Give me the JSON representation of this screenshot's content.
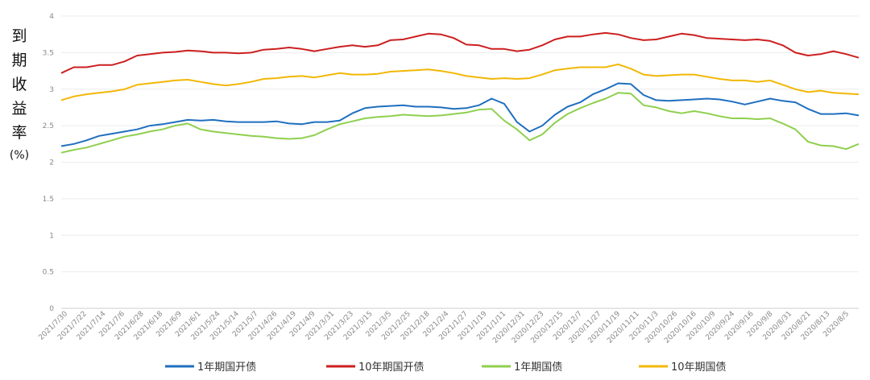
{
  "chart_data": {
    "type": "line",
    "ylabel_chars": [
      "到",
      "期",
      "收",
      "益",
      "率"
    ],
    "ylabel_unit": "(%)",
    "ylim": [
      0,
      4
    ],
    "yticks": [
      "0",
      "0.5",
      "1",
      "1.5",
      "2",
      "2.5",
      "3",
      "3.5",
      "4"
    ],
    "grid": true,
    "legend_position": "bottom",
    "x_order": "newest-to-oldest (left to right)",
    "xticks": [
      "2021/7/30",
      "2021/7/22",
      "2021/7/14",
      "2021/7/6",
      "2021/6/28",
      "2021/6/18",
      "2021/6/9",
      "2021/6/1",
      "2021/5/24",
      "2021/5/14",
      "2021/5/7",
      "2021/4/26",
      "2021/4/19",
      "2021/4/9",
      "2021/3/31",
      "2021/3/23",
      "2021/3/15",
      "2021/3/5",
      "2021/2/25",
      "2021/2/18",
      "2021/2/4",
      "2021/1/27",
      "2021/1/19",
      "2021/1/11",
      "2020/12/31",
      "2020/12/23",
      "2020/12/15",
      "2020/12/7",
      "2020/11/27",
      "2020/11/19",
      "2020/11/11",
      "2020/11/3",
      "2020/10/26",
      "2020/10/16",
      "2020/10/9",
      "2020/9/24",
      "2020/9/16",
      "2020/9/8",
      "2020/8/31",
      "2020/8/21",
      "2020/8/13",
      "2020/8/5"
    ],
    "series": [
      {
        "name": "1年期国开债",
        "color": "#1f6fbf",
        "values": [
          2.22,
          2.25,
          2.3,
          2.36,
          2.39,
          2.42,
          2.45,
          2.5,
          2.52,
          2.55,
          2.58,
          2.57,
          2.58,
          2.56,
          2.55,
          2.55,
          2.55,
          2.56,
          2.53,
          2.52,
          2.55,
          2.55,
          2.57,
          2.67,
          2.74,
          2.76,
          2.77,
          2.78,
          2.76,
          2.76,
          2.75,
          2.73,
          2.74,
          2.78,
          2.87,
          2.8,
          2.55,
          2.42,
          2.5,
          2.65,
          2.76,
          2.82,
          2.93,
          3.0,
          3.08,
          3.07,
          2.92,
          2.85,
          2.84,
          2.85,
          2.86,
          2.87,
          2.86,
          2.83,
          2.79,
          2.83,
          2.87,
          2.84,
          2.82,
          2.73,
          2.66,
          2.66,
          2.67,
          2.64
        ]
      },
      {
        "name": "10年期国开债",
        "color": "#cc1f1f",
        "values": [
          3.22,
          3.3,
          3.3,
          3.33,
          3.33,
          3.38,
          3.46,
          3.48,
          3.5,
          3.51,
          3.53,
          3.52,
          3.5,
          3.5,
          3.49,
          3.5,
          3.54,
          3.55,
          3.57,
          3.55,
          3.52,
          3.55,
          3.58,
          3.6,
          3.58,
          3.6,
          3.67,
          3.68,
          3.72,
          3.76,
          3.75,
          3.7,
          3.61,
          3.6,
          3.55,
          3.55,
          3.52,
          3.54,
          3.6,
          3.68,
          3.72,
          3.72,
          3.75,
          3.77,
          3.75,
          3.7,
          3.67,
          3.68,
          3.72,
          3.76,
          3.74,
          3.7,
          3.69,
          3.68,
          3.67,
          3.68,
          3.66,
          3.6,
          3.5,
          3.46,
          3.48,
          3.52,
          3.48,
          3.43
        ]
      },
      {
        "name": "1年期国债",
        "color": "#8fcf4e",
        "values": [
          2.13,
          2.17,
          2.2,
          2.25,
          2.3,
          2.35,
          2.38,
          2.42,
          2.45,
          2.5,
          2.53,
          2.45,
          2.42,
          2.4,
          2.38,
          2.36,
          2.35,
          2.33,
          2.32,
          2.33,
          2.37,
          2.45,
          2.52,
          2.56,
          2.6,
          2.62,
          2.63,
          2.65,
          2.64,
          2.63,
          2.64,
          2.66,
          2.68,
          2.72,
          2.73,
          2.57,
          2.45,
          2.3,
          2.38,
          2.54,
          2.66,
          2.74,
          2.81,
          2.87,
          2.95,
          2.94,
          2.78,
          2.75,
          2.7,
          2.67,
          2.7,
          2.67,
          2.63,
          2.6,
          2.6,
          2.59,
          2.6,
          2.53,
          2.45,
          2.28,
          2.23,
          2.22,
          2.18,
          2.25
        ]
      },
      {
        "name": "10年期国债",
        "color": "#f2b705",
        "values": [
          2.85,
          2.9,
          2.93,
          2.95,
          2.97,
          3.0,
          3.06,
          3.08,
          3.1,
          3.12,
          3.13,
          3.1,
          3.07,
          3.05,
          3.07,
          3.1,
          3.14,
          3.15,
          3.17,
          3.18,
          3.16,
          3.19,
          3.22,
          3.2,
          3.2,
          3.21,
          3.24,
          3.25,
          3.26,
          3.27,
          3.25,
          3.22,
          3.18,
          3.16,
          3.14,
          3.15,
          3.14,
          3.15,
          3.2,
          3.26,
          3.28,
          3.3,
          3.3,
          3.3,
          3.34,
          3.28,
          3.2,
          3.18,
          3.19,
          3.2,
          3.2,
          3.17,
          3.14,
          3.12,
          3.12,
          3.1,
          3.12,
          3.06,
          3.0,
          2.96,
          2.98,
          2.95,
          2.94,
          2.93
        ]
      }
    ]
  }
}
